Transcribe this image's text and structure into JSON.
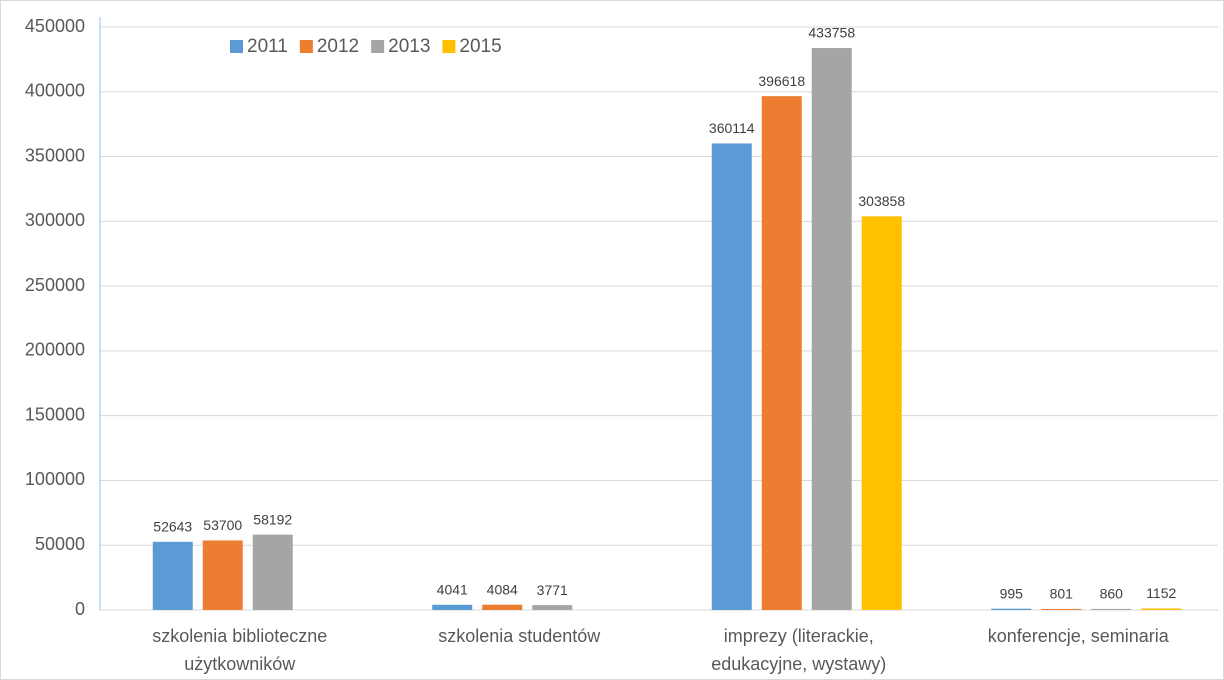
{
  "chart_data": {
    "type": "bar",
    "categories": [
      "szkolenia biblioteczne użytkowników",
      "szkolenia studentów",
      "imprezy (literackie, edukacyjne, wystawy)",
      "konferencje, seminaria"
    ],
    "series": [
      {
        "name": "2011",
        "color": "#5b9bd5",
        "values": [
          52643,
          4041,
          360114,
          995
        ]
      },
      {
        "name": "2012",
        "color": "#ed7d31",
        "values": [
          53700,
          4084,
          396618,
          801
        ]
      },
      {
        "name": "2013",
        "color": "#a5a5a5",
        "values": [
          58192,
          3771,
          433758,
          860
        ]
      },
      {
        "name": "2015",
        "color": "#ffc000",
        "values": [
          null,
          null,
          303858,
          1152
        ]
      }
    ],
    "ylim": [
      0,
      450000
    ],
    "yticks": [
      0,
      50000,
      100000,
      150000,
      200000,
      250000,
      300000,
      350000,
      400000,
      450000
    ],
    "grid": true,
    "legend": "top"
  }
}
